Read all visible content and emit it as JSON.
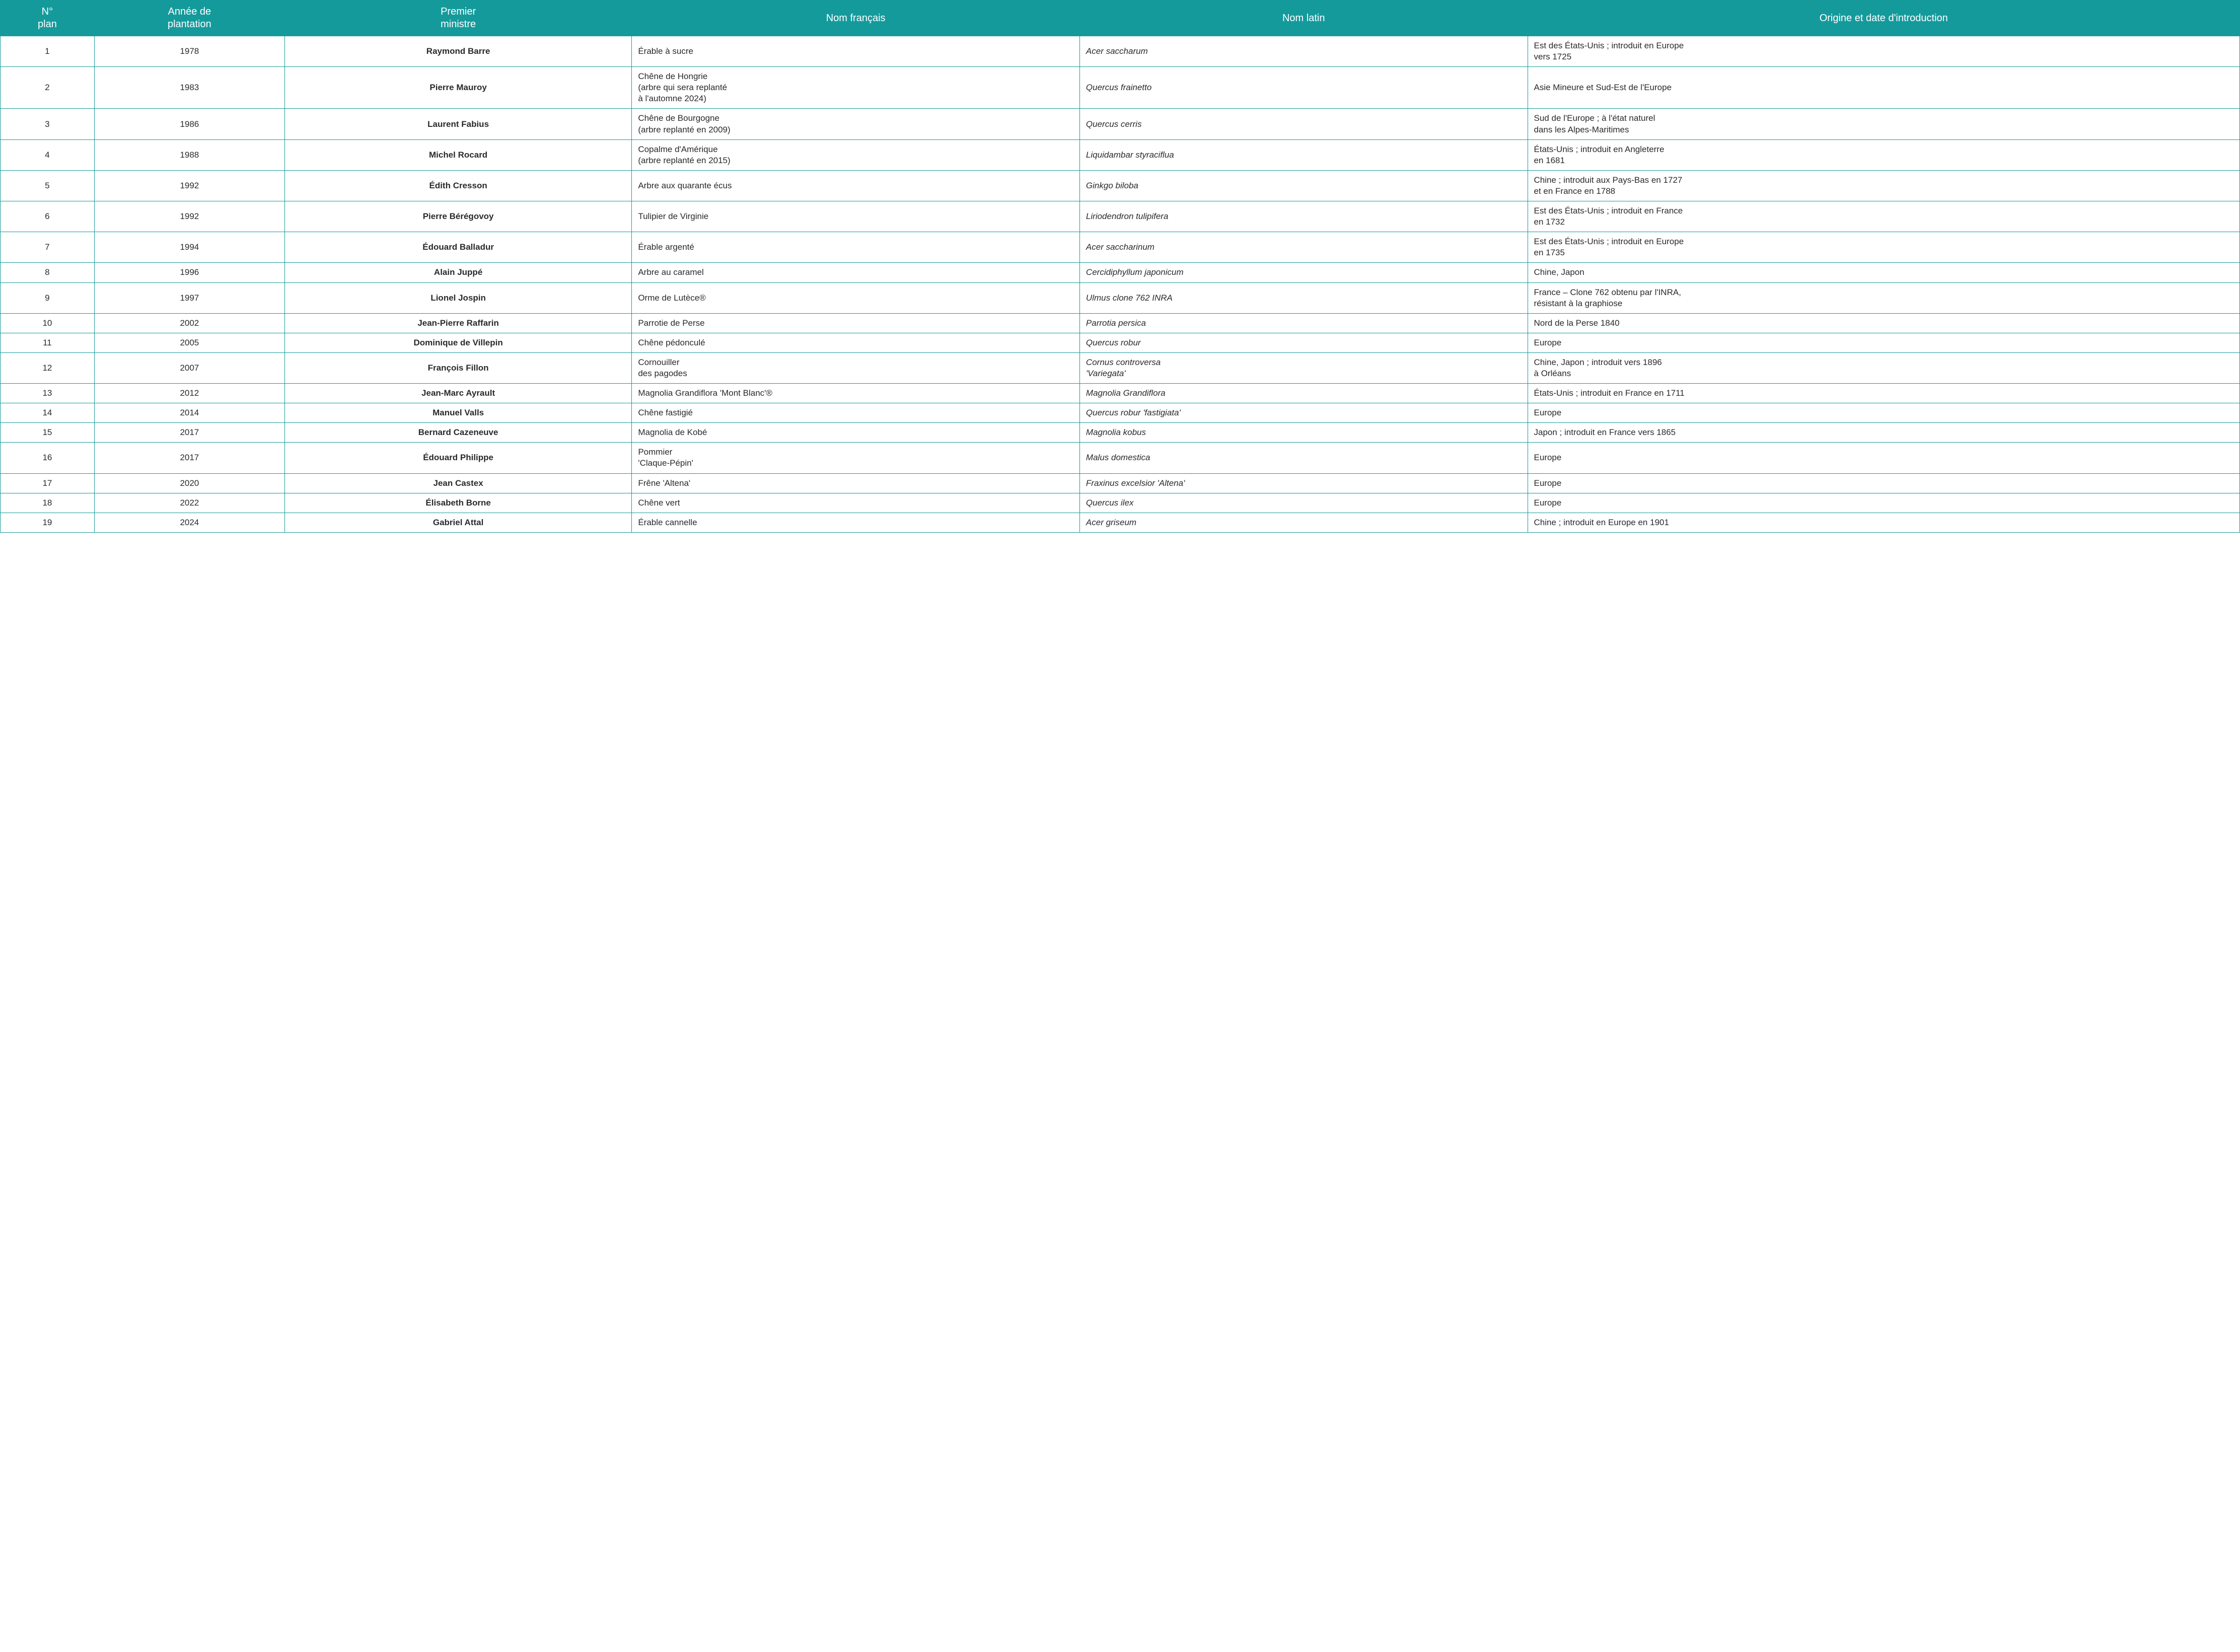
{
  "table": {
    "header_bg": "#159a9c",
    "header_fg": "#ffffff",
    "border_color": "#159a9c",
    "body_bg": "#ffffff",
    "body_fg": "#2a2a2a",
    "header_fontsize": 20,
    "body_fontsize": 17,
    "columns": [
      {
        "key": "plan",
        "label": "N°\nplan",
        "width_pct": 4.2,
        "align": "center"
      },
      {
        "key": "year",
        "label": "Année de\nplantation",
        "width_pct": 8.5,
        "align": "center"
      },
      {
        "key": "pm",
        "label": "Premier\nministre",
        "width_pct": 15.5,
        "align": "center",
        "bold": true
      },
      {
        "key": "name_fr",
        "label": "Nom français",
        "width_pct": 20,
        "align": "left"
      },
      {
        "key": "name_la",
        "label": "Nom latin",
        "width_pct": 20,
        "align": "left",
        "italic": true
      },
      {
        "key": "origin",
        "label": "Origine et date d'introduction",
        "width_pct": 31.8,
        "align": "left"
      }
    ],
    "rows": [
      {
        "plan": "1",
        "year": "1978",
        "pm": "Raymond Barre",
        "name_fr": "Érable à sucre",
        "name_la": "Acer saccharum",
        "origin": "Est des États-Unis ; introduit en Europe\nvers 1725"
      },
      {
        "plan": "2",
        "year": "1983",
        "pm": "Pierre Mauroy",
        "name_fr": "Chêne de Hongrie\n(arbre qui sera replanté\nà l'automne 2024)",
        "name_la": "Quercus frainetto",
        "origin": "Asie Mineure et Sud-Est de l'Europe"
      },
      {
        "plan": "3",
        "year": "1986",
        "pm": "Laurent Fabius",
        "name_fr": "Chêne de Bourgogne\n(arbre replanté en 2009)",
        "name_la": "Quercus cerris",
        "origin": "Sud de l'Europe ; à l'état naturel\ndans les Alpes-Maritimes"
      },
      {
        "plan": "4",
        "year": "1988",
        "pm": "Michel Rocard",
        "name_fr": "Copalme d'Amérique\n(arbre replanté en 2015)",
        "name_la": "Liquidambar styraciflua",
        "origin": "États-Unis ; introduit en Angleterre\nen 1681"
      },
      {
        "plan": "5",
        "year": "1992",
        "pm": "Édith Cresson",
        "name_fr": "Arbre aux quarante écus",
        "name_la": "Ginkgo biloba",
        "origin": "Chine ; introduit aux Pays-Bas en 1727\net en France en 1788"
      },
      {
        "plan": "6",
        "year": "1992",
        "pm": "Pierre Bérégovoy",
        "name_fr": "Tulipier de Virginie",
        "name_la": "Liriodendron tulipifera",
        "origin": "Est des États-Unis ; introduit en France\nen 1732"
      },
      {
        "plan": "7",
        "year": "1994",
        "pm": "Édouard Balladur",
        "name_fr": "Érable argenté",
        "name_la": "Acer saccharinum",
        "origin": "Est des États-Unis ; introduit en Europe\nen 1735"
      },
      {
        "plan": "8",
        "year": "1996",
        "pm": "Alain Juppé",
        "name_fr": "Arbre au caramel",
        "name_la": "Cercidiphyllum japonicum",
        "origin": "Chine, Japon"
      },
      {
        "plan": "9",
        "year": "1997",
        "pm": "Lionel Jospin",
        "name_fr": "Orme de Lutèce®",
        "name_la": "Ulmus clone 762 INRA",
        "origin": "France – Clone 762 obtenu par l'INRA,\nrésistant à la graphiose"
      },
      {
        "plan": "10",
        "year": "2002",
        "pm": "Jean-Pierre Raffarin",
        "name_fr": "Parrotie de Perse",
        "name_la": "Parrotia persica",
        "origin": "Nord de la Perse 1840"
      },
      {
        "plan": "11",
        "year": "2005",
        "pm": "Dominique de Villepin",
        "name_fr": "Chêne pédonculé",
        "name_la": "Quercus robur",
        "origin": "Europe"
      },
      {
        "plan": "12",
        "year": "2007",
        "pm": "François Fillon",
        "name_fr": "Cornouiller\ndes pagodes",
        "name_la": "Cornus controversa\n'Variegata'",
        "origin": "Chine, Japon ; introduit vers 1896\nà Orléans"
      },
      {
        "plan": "13",
        "year": "2012",
        "pm": "Jean-Marc Ayrault",
        "name_fr": "Magnolia Grandiflora 'Mont Blanc'®",
        "name_la": "Magnolia Grandiflora",
        "origin": "États-Unis ; introduit en France en 1711"
      },
      {
        "plan": "14",
        "year": "2014",
        "pm": "Manuel Valls",
        "name_fr": "Chêne fastigié",
        "name_la": "Quercus robur 'fastigiata'",
        "origin": "Europe"
      },
      {
        "plan": "15",
        "year": "2017",
        "pm": "Bernard Cazeneuve",
        "name_fr": "Magnolia de Kobé",
        "name_la": "Magnolia kobus",
        "origin": "Japon ; introduit en France vers 1865"
      },
      {
        "plan": "16",
        "year": "2017",
        "pm": "Édouard Philippe",
        "name_fr": "Pommier\n'Claque-Pépin'",
        "name_la": "Malus domestica",
        "origin": "Europe"
      },
      {
        "plan": "17",
        "year": "2020",
        "pm": "Jean Castex",
        "name_fr": "Frêne 'Altena'",
        "name_la": "Fraxinus excelsior 'Altena'",
        "origin": "Europe"
      },
      {
        "plan": "18",
        "year": "2022",
        "pm": "Élisabeth Borne",
        "name_fr": "Chêne vert",
        "name_la": "Quercus ilex",
        "origin": "Europe"
      },
      {
        "plan": "19",
        "year": "2024",
        "pm": "Gabriel Attal",
        "name_fr": "Érable cannelle",
        "name_la": "Acer griseum",
        "origin": "Chine ; introduit en Europe en 1901"
      }
    ]
  }
}
